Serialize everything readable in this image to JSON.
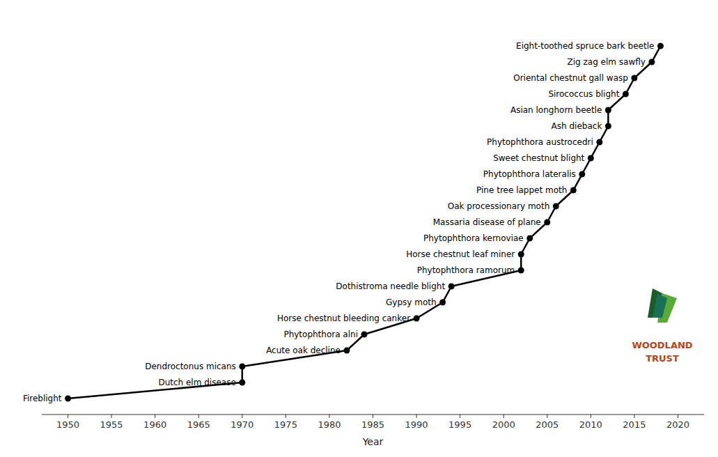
{
  "chart_data": {
    "type": "line",
    "x": [
      1950,
      1970,
      1970,
      1982,
      1984,
      1990,
      1993,
      1994,
      2002,
      2002,
      2003,
      2005,
      2006,
      2008,
      2009,
      2010,
      2011,
      2012,
      2012,
      2014,
      2015,
      2017,
      2018
    ],
    "values": [
      1,
      2,
      3,
      4,
      5,
      6,
      7,
      8,
      9,
      10,
      11,
      12,
      13,
      14,
      15,
      16,
      17,
      18,
      19,
      20,
      21,
      22,
      23
    ],
    "labels": [
      "Fireblight",
      "Dutch elm disease",
      "Dendroctonus micans",
      "Acute oak decline",
      "Phytophthora alni",
      "Horse chestnut bleeding canker",
      "Gypsy moth",
      "Dothistroma needle blight",
      "Phytophthora ramorum",
      "Horse chestnut leaf miner",
      "Phytophthora kernoviae",
      "Massaria disease of plane",
      "Oak processionary moth",
      "Pine tree lappet moth",
      "Phytophthora lateralis",
      "Sweet chestnut blight",
      "Phytophthora austrocedri",
      "Ash dieback",
      "Asian longhorn beetle",
      "Sirococcus blight",
      "Oriental chestnut gall wasp",
      "Zig zag elm sawfly",
      "Eight-toothed spruce bark beetle"
    ],
    "xlabel": "Year",
    "xlim": [
      1947,
      2023
    ],
    "ylim": [
      0.0,
      25
    ],
    "xticks": [
      1950,
      1955,
      1960,
      1965,
      1970,
      1975,
      1980,
      1985,
      1990,
      1995,
      2000,
      2005,
      2010,
      2015,
      2020
    ],
    "color": "#000000",
    "marker": "circle",
    "grid": false,
    "tick_labels": "x",
    "annotations": [
      {
        "text": "WOODLAND\nTRUST",
        "color": "#b5451b"
      }
    ]
  }
}
